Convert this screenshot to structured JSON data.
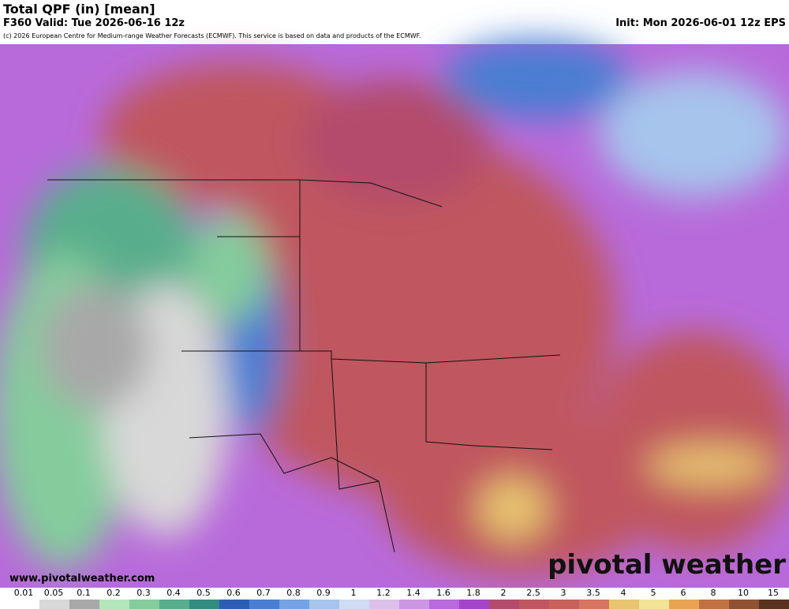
{
  "header": {
    "title": "Total QPF (in) [mean]",
    "valid": "F360 Valid: Tue 2026-06-16 12z",
    "init": "Init: Mon 2026-06-01 12z EPS",
    "credit": "(c) 2026 European Centre for Medium-range Weather Forecasts (ECMWF). This service is based on data and products of the ECMWF."
  },
  "footer": {
    "url": "www.pivotalweather.com",
    "logo": "pivotal weather"
  },
  "legend": {
    "labels": [
      "0.01",
      "0.05",
      "0.1",
      "0.2",
      "0.3",
      "0.4",
      "0.5",
      "0.6",
      "0.7",
      "0.8",
      "0.9",
      "1",
      "1.2",
      "1.4",
      "1.6",
      "1.8",
      "2",
      "2.5",
      "3",
      "3.5",
      "4",
      "5",
      "6",
      "8",
      "10",
      "15"
    ],
    "colors": [
      "#ffffff",
      "#d8d8d8",
      "#a8a8a8",
      "#b4e6bc",
      "#84cc9c",
      "#58ae8c",
      "#338c80",
      "#2c5eb8",
      "#4a7ed2",
      "#74a2e2",
      "#a6c4ec",
      "#cfdcf2",
      "#dcc0ea",
      "#cc96e2",
      "#b86ada",
      "#a444c8",
      "#b34c6c",
      "#c0565e",
      "#c8605c",
      "#d87462",
      "#e8c470",
      "#f2e496",
      "#e8a452",
      "#c07242",
      "#905032",
      "#5a3220"
    ]
  }
}
